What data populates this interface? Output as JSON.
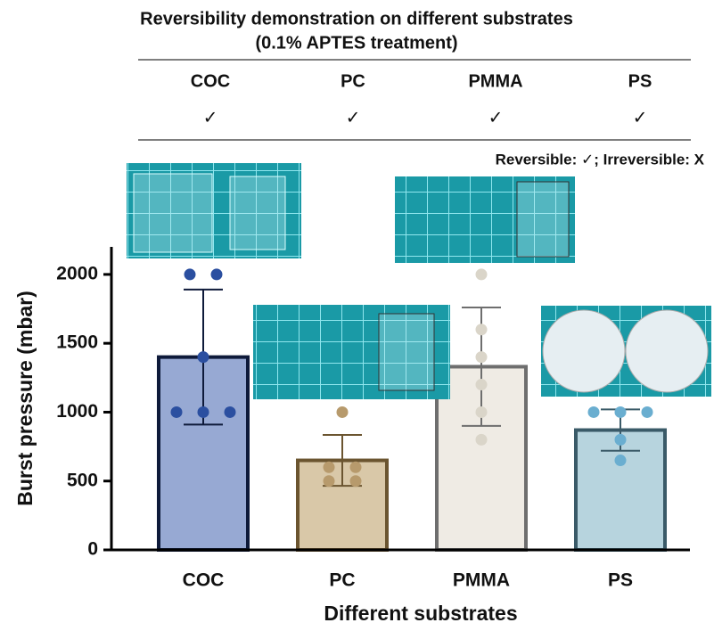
{
  "table": {
    "title_lines": [
      "Reversibility demonstration on different substrates",
      "(0.1% APTES treatment)"
    ],
    "header": [
      "COC",
      "PC",
      "PMMA",
      "PS"
    ],
    "rows": [
      [
        "✓",
        "✓",
        "✓",
        "✓"
      ]
    ],
    "note": "Reversible: ✓; Irreversible: X"
  },
  "chart_data": {
    "type": "bar",
    "x_label": "Different substrates",
    "y_label": "Burst pressure (mbar)",
    "categories": [
      "COC",
      "PC",
      "PMMA",
      "PS"
    ],
    "values": [
      1400,
      650,
      1330,
      870
    ],
    "errors": [
      490,
      185,
      430,
      150
    ],
    "points": [
      [
        2000,
        2000,
        1400,
        1000,
        1000,
        1000
      ],
      [
        1000,
        600,
        600,
        500,
        500
      ],
      [
        2000,
        1600,
        1400,
        1200,
        1000,
        800
      ],
      [
        1000,
        1000,
        1000,
        800,
        650
      ]
    ],
    "colors": [
      "#97a9d3",
      "#d9c8a8",
      "#efebe4",
      "#b7d4de"
    ],
    "edge_colors": [
      "#0e1a3a",
      "#6b5530",
      "#6e6e6e",
      "#3a5a68"
    ],
    "point_colors": [
      "#2b4fa0",
      "#b79a6c",
      "#dad5c9",
      "#6aaed0"
    ],
    "ylim": [
      0,
      2200
    ],
    "yticks": [
      0,
      500,
      1000,
      1500,
      2000
    ]
  }
}
